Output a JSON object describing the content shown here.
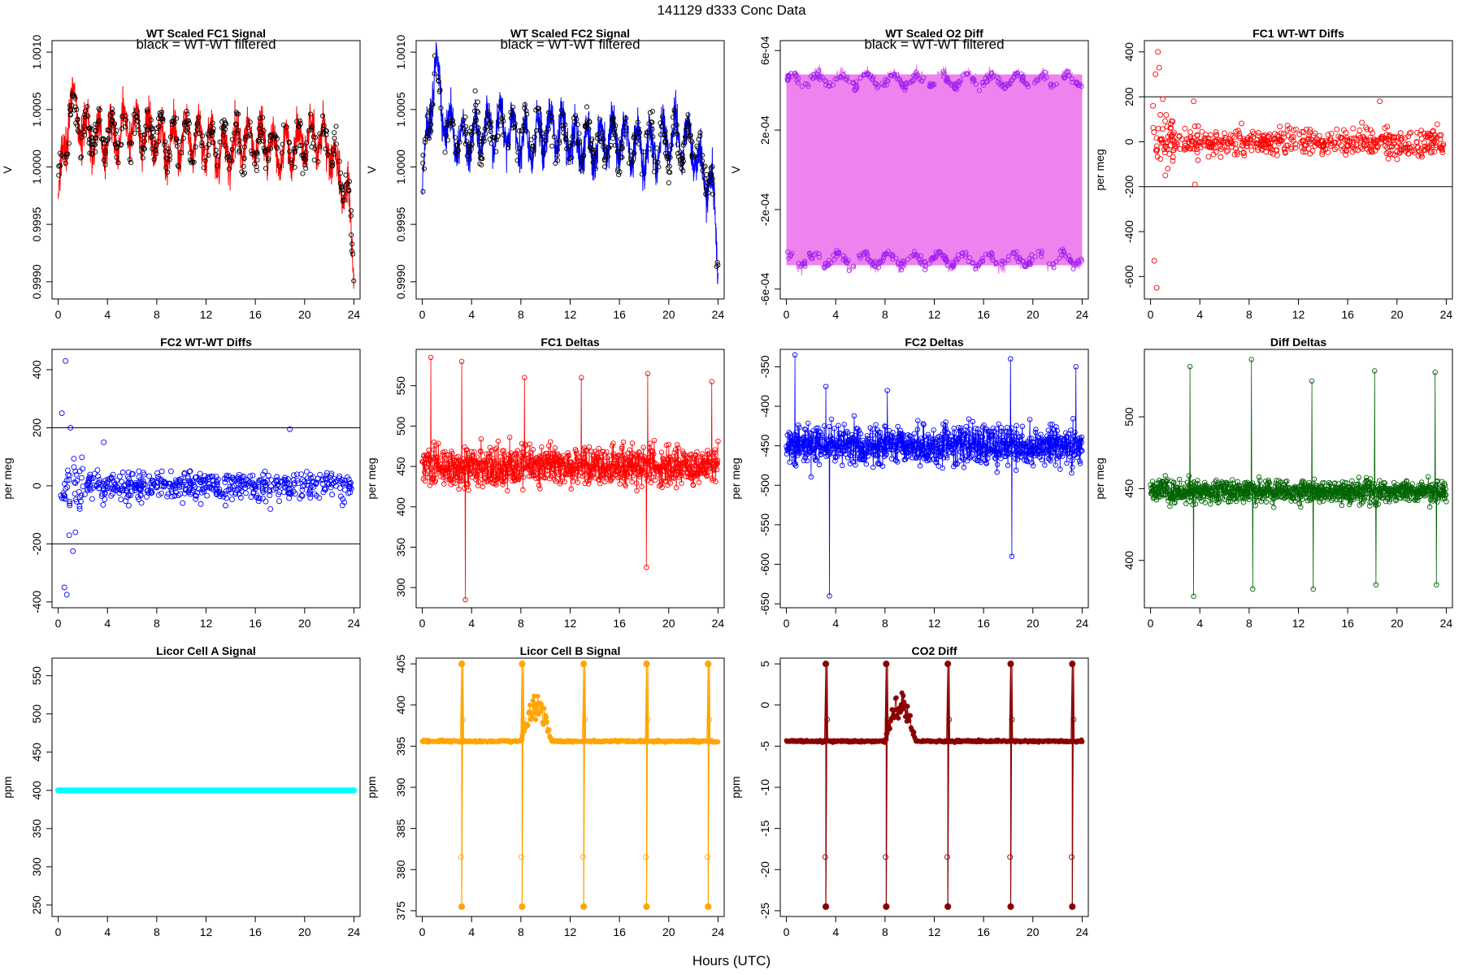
{
  "figure": {
    "title": "141129   d333   Conc Data",
    "xlabel": "Hours (UTC)"
  },
  "chart_data": [
    {
      "id": "p1",
      "type": "line",
      "style": "dense-line-points",
      "title": "WT Scaled FC1 Signal",
      "annotation": "black = WT-WT filtered",
      "xlabel": "",
      "ylabel": "V",
      "xlim": [
        -0.5,
        24.5
      ],
      "ylim": [
        0.99885,
        1.0011
      ],
      "xticks": [
        0,
        4,
        8,
        12,
        16,
        20,
        24
      ],
      "yticks": [
        0.999,
        0.9995,
        1.0,
        1.0005,
        1.001
      ],
      "ytick_labels": [
        "0.9990",
        "0.9995",
        "1.0000",
        "1.0005",
        "1.0010"
      ],
      "color": "#ff0000",
      "point_color": "#000000",
      "approx_series": [
        {
          "x": 0,
          "y": 0.99975
        },
        {
          "x": 1,
          "y": 1.0005
        },
        {
          "x": 2,
          "y": 1.0003
        },
        {
          "x": 6,
          "y": 1.0003
        },
        {
          "x": 12,
          "y": 1.0002
        },
        {
          "x": 18,
          "y": 1.0002
        },
        {
          "x": 22,
          "y": 1.0002
        },
        {
          "x": 23.5,
          "y": 0.9998
        },
        {
          "x": 24,
          "y": 0.9991
        }
      ]
    },
    {
      "id": "p2",
      "type": "line",
      "style": "dense-line-points",
      "title": "WT Scaled FC2 Signal",
      "annotation": "black = WT-WT filtered",
      "xlabel": "",
      "ylabel": "V",
      "xlim": [
        -0.5,
        24.5
      ],
      "ylim": [
        0.99885,
        1.0011
      ],
      "xticks": [
        0,
        4,
        8,
        12,
        16,
        20,
        24
      ],
      "yticks": [
        0.999,
        0.9995,
        1.0,
        1.0005,
        1.001
      ],
      "ytick_labels": [
        "0.9990",
        "0.9995",
        "1.0000",
        "1.0005",
        "1.0010"
      ],
      "color": "#0000ff",
      "point_color": "#000000",
      "approx_series": [
        {
          "x": 0,
          "y": 0.99985
        },
        {
          "x": 1,
          "y": 1.0008
        },
        {
          "x": 2,
          "y": 1.0003
        },
        {
          "x": 8,
          "y": 1.0003
        },
        {
          "x": 16,
          "y": 1.0002
        },
        {
          "x": 22,
          "y": 1.0002
        },
        {
          "x": 23.5,
          "y": 0.99985
        },
        {
          "x": 24,
          "y": 0.9992
        }
      ]
    },
    {
      "id": "p3",
      "type": "line",
      "style": "band-two-levels",
      "title": "WT Scaled O2 Diff",
      "annotation": "black = WT-WT filtered",
      "xlabel": "",
      "ylabel": "V",
      "xlim": [
        -0.5,
        24.5
      ],
      "ylim": [
        -0.00065,
        0.00065
      ],
      "xticks": [
        0,
        4,
        8,
        12,
        16,
        20,
        24
      ],
      "yticks": [
        -0.0006,
        -0.0002,
        0.0002,
        0.0006
      ],
      "ytick_labels": [
        "-6e-04",
        "-2e-04",
        "2e-04",
        "6e-04"
      ],
      "color": "#ee82ee",
      "point_color": "#a020f0",
      "levels": [
        0.00045,
        -0.00045
      ]
    },
    {
      "id": "p4",
      "type": "scatter",
      "style": "scatter",
      "title": "FC1 WT-WT Diffs",
      "xlabel": "",
      "ylabel": "per meg",
      "xlim": [
        -0.5,
        24.5
      ],
      "ylim": [
        -700,
        450
      ],
      "xticks": [
        0,
        4,
        8,
        12,
        16,
        20,
        24
      ],
      "yticks": [
        -600,
        -400,
        -200,
        0,
        200,
        400
      ],
      "ytick_labels": [
        "-600",
        "-400",
        "-200",
        "0",
        "200",
        "400"
      ],
      "hlines": [
        200,
        -200
      ],
      "color": "#ff0000",
      "points": [
        [
          0.2,
          160
        ],
        [
          0.3,
          -530
        ],
        [
          0.4,
          300
        ],
        [
          0.5,
          -650
        ],
        [
          0.6,
          400
        ],
        [
          0.7,
          330
        ],
        [
          0.8,
          120
        ],
        [
          1.0,
          190
        ],
        [
          1.2,
          -150
        ],
        [
          1.4,
          -120
        ],
        [
          1.6,
          60
        ],
        [
          1.8,
          90
        ],
        [
          3.5,
          180
        ],
        [
          3.6,
          -190
        ],
        [
          18.6,
          180
        ]
      ],
      "spread": 60
    },
    {
      "id": "p5",
      "type": "scatter",
      "style": "scatter",
      "title": "FC2 WT-WT Diffs",
      "xlabel": "",
      "ylabel": "per meg",
      "xlim": [
        -0.5,
        24.5
      ],
      "ylim": [
        -420,
        470
      ],
      "xticks": [
        0,
        4,
        8,
        12,
        16,
        20,
        24
      ],
      "yticks": [
        -400,
        -200,
        0,
        200,
        400
      ],
      "ytick_labels": [
        "-400",
        "-200",
        "0",
        "200",
        "400"
      ],
      "hlines": [
        200,
        -200
      ],
      "color": "#0000ff",
      "points": [
        [
          0.3,
          250
        ],
        [
          0.5,
          -350
        ],
        [
          0.6,
          430
        ],
        [
          0.7,
          -375
        ],
        [
          1.0,
          200
        ],
        [
          1.2,
          -225
        ],
        [
          1.4,
          -160
        ],
        [
          0.9,
          -170
        ],
        [
          3.7,
          150
        ],
        [
          18.8,
          195
        ]
      ],
      "spread": 50
    },
    {
      "id": "p6",
      "type": "line",
      "style": "noisy-line",
      "title": "FC1 Deltas",
      "xlabel": "",
      "ylabel": "per meg",
      "xlim": [
        -0.5,
        24.5
      ],
      "ylim": [
        275,
        595
      ],
      "xticks": [
        0,
        4,
        8,
        12,
        16,
        20,
        24
      ],
      "yticks": [
        300,
        350,
        400,
        450,
        500,
        550
      ],
      "ytick_labels": [
        "300",
        "350",
        "400",
        "450",
        "500",
        "550"
      ],
      "color": "#ff0000",
      "center": 450,
      "spread": 25,
      "spikes": [
        [
          0.7,
          585
        ],
        [
          3.2,
          580
        ],
        [
          3.5,
          285
        ],
        [
          8.3,
          560
        ],
        [
          12.9,
          560
        ],
        [
          18.3,
          565
        ],
        [
          23.5,
          555
        ],
        [
          18.2,
          325
        ]
      ]
    },
    {
      "id": "p7",
      "type": "line",
      "style": "noisy-line",
      "title": "FC2 Deltas",
      "xlabel": "",
      "ylabel": "per meg",
      "xlim": [
        -0.5,
        24.5
      ],
      "ylim": [
        -655,
        -328
      ],
      "xticks": [
        0,
        4,
        8,
        12,
        16,
        20,
        24
      ],
      "yticks": [
        -650,
        -600,
        -550,
        -500,
        -450,
        -400,
        -350
      ],
      "ytick_labels": [
        "-650",
        "-600",
        "-550",
        "-500",
        "-450",
        "-400",
        "-350"
      ],
      "color": "#0000ff",
      "center": -450,
      "spread": 25,
      "spikes": [
        [
          0.7,
          -335
        ],
        [
          3.5,
          -640
        ],
        [
          3.2,
          -375
        ],
        [
          8.2,
          -380
        ],
        [
          18.2,
          -340
        ],
        [
          18.3,
          -590
        ],
        [
          23.5,
          -350
        ]
      ]
    },
    {
      "id": "p8",
      "type": "line",
      "style": "noisy-line",
      "title": "Diff Deltas",
      "xlabel": "",
      "ylabel": "per meg",
      "xlim": [
        -0.5,
        24.5
      ],
      "ylim": [
        367,
        547
      ],
      "xticks": [
        0,
        4,
        8,
        12,
        16,
        20,
        24
      ],
      "yticks": [
        400,
        450,
        500
      ],
      "ytick_labels": [
        "400",
        "450",
        "500"
      ],
      "color": "#006400",
      "center": 448,
      "spread": 8,
      "spikes": [
        [
          3.2,
          535
        ],
        [
          3.5,
          375
        ],
        [
          8.2,
          540
        ],
        [
          8.3,
          380
        ],
        [
          13.1,
          525
        ],
        [
          13.2,
          380
        ],
        [
          18.2,
          532
        ],
        [
          18.3,
          383
        ],
        [
          23.1,
          531
        ],
        [
          23.2,
          383
        ]
      ]
    },
    {
      "id": "p9",
      "type": "line",
      "style": "flat-points",
      "title": "Licor Cell A Signal",
      "xlabel": "",
      "ylabel": "ppm",
      "xlim": [
        -0.5,
        24.5
      ],
      "ylim": [
        235,
        573
      ],
      "xticks": [
        0,
        4,
        8,
        12,
        16,
        20,
        24
      ],
      "yticks": [
        250,
        300,
        350,
        400,
        450,
        500,
        550
      ],
      "ytick_labels": [
        "250",
        "300",
        "350",
        "400",
        "450",
        "500",
        "550"
      ],
      "color": "#00ffff",
      "center": 400
    },
    {
      "id": "p10",
      "type": "line",
      "style": "licor",
      "title": "Licor Cell B Signal",
      "xlabel": "",
      "ylabel": "ppm",
      "xlim": [
        -0.5,
        24.5
      ],
      "ylim": [
        374.3,
        405.7
      ],
      "xticks": [
        0,
        4,
        8,
        12,
        16,
        20,
        24
      ],
      "yticks": [
        375,
        380,
        385,
        390,
        395,
        400,
        405
      ],
      "ytick_labels": [
        "375",
        "380",
        "385",
        "390",
        "395",
        "400",
        "405"
      ],
      "color": "#ffa500",
      "baseline": 395.6,
      "hi": 405,
      "lo": 375.5,
      "spike_hours": [
        3.2,
        8.1,
        13.1,
        18.2,
        23.2
      ],
      "bump": [
        8,
        10.5,
        401
      ]
    },
    {
      "id": "p11",
      "type": "line",
      "style": "licor",
      "title": "CO2 Diff",
      "xlabel": "",
      "ylabel": "ppm",
      "xlim": [
        -0.5,
        24.5
      ],
      "ylim": [
        -25.7,
        5.7
      ],
      "xticks": [
        0,
        4,
        8,
        12,
        16,
        20,
        24
      ],
      "yticks": [
        -25,
        -20,
        -15,
        -10,
        -5,
        0,
        5
      ],
      "ytick_labels": [
        "-25",
        "-20",
        "-15",
        "-10",
        "-5",
        "0",
        "5"
      ],
      "color": "#8b0000",
      "baseline": -4.4,
      "hi": 5,
      "lo": -24.5,
      "spike_hours": [
        3.2,
        8.1,
        13.1,
        18.2,
        23.2
      ],
      "bump": [
        8,
        10.5,
        1
      ]
    }
  ]
}
